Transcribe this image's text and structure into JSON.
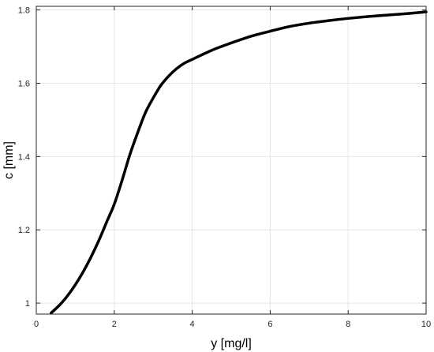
{
  "chart_data": {
    "type": "line",
    "title": "",
    "xlabel": "y [mg/l]",
    "ylabel": "c [mm]",
    "xlim": [
      0,
      10
    ],
    "ylim": [
      0.97,
      1.81
    ],
    "xticks": [
      0,
      2,
      4,
      6,
      8,
      10
    ],
    "xtick_labels": [
      "0",
      "2",
      "4",
      "6",
      "8",
      "10"
    ],
    "yticks": [
      1.0,
      1.2,
      1.4,
      1.6,
      1.8
    ],
    "ytick_labels": [
      "1",
      "1.2",
      "1.4",
      "1.6",
      "1.8"
    ],
    "grid": true,
    "series": [
      {
        "color": "#000000",
        "x": [
          0.38,
          0.6,
          0.8,
          1.0,
          1.2,
          1.4,
          1.6,
          1.8,
          2.0,
          2.2,
          2.4,
          2.6,
          2.8,
          3.0,
          3.2,
          3.4,
          3.6,
          3.8,
          4.0,
          4.5,
          5.0,
          5.5,
          6.0,
          6.5,
          7.0,
          7.5,
          8.0,
          8.5,
          9.0,
          9.5,
          10.0
        ],
        "y": [
          0.973,
          0.995,
          1.02,
          1.05,
          1.085,
          1.125,
          1.17,
          1.22,
          1.27,
          1.335,
          1.405,
          1.465,
          1.52,
          1.56,
          1.595,
          1.62,
          1.64,
          1.655,
          1.665,
          1.69,
          1.71,
          1.728,
          1.742,
          1.755,
          1.764,
          1.771,
          1.777,
          1.782,
          1.786,
          1.79,
          1.795
        ]
      }
    ]
  }
}
